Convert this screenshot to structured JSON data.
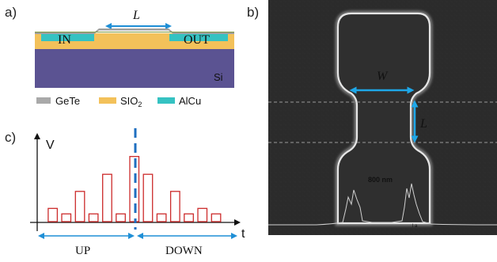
{
  "panel_a": {
    "letter": "a)",
    "label_length": "L",
    "label_in": "IN",
    "label_out": "OUT",
    "label_substrate": "Si",
    "legend": [
      {
        "text": "GeTe",
        "color": "#a9a9a9"
      },
      {
        "text": "SIO",
        "sub": "2",
        "color": "#f3c15a"
      },
      {
        "text": "AlCu",
        "color": "#35c2c2"
      }
    ],
    "colors": {
      "si": "#5b5392",
      "sio2": "#f3c15a",
      "alcu": "#35c2c2",
      "gete": "#9e9e9e",
      "arrow": "#1f8fd6"
    }
  },
  "panel_b": {
    "letter": "b)",
    "label_width": "W",
    "label_length": "L",
    "scale_text": "800 nm",
    "colors": {
      "background": "#2a2a2a",
      "outline": "#d8d8d8",
      "arrow": "#1ea7e8",
      "scale": "#e32020"
    }
  },
  "panel_c": {
    "letter": "c)",
    "ylabel": "V",
    "xlabel": "t",
    "label_up": "UP",
    "label_down": "DOWN",
    "colors": {
      "pulse": "#cc2b2b",
      "dashed": "#1f6fc0",
      "arrow": "#1f8fd6"
    },
    "pulses": [
      {
        "pos": 0.5,
        "height": 0.17
      },
      {
        "pos": 1.5,
        "height": 0.1
      },
      {
        "pos": 2.5,
        "height": 0.39
      },
      {
        "pos": 3.5,
        "height": 0.1
      },
      {
        "pos": 4.5,
        "height": 0.61
      },
      {
        "pos": 5.5,
        "height": 0.1
      },
      {
        "pos": 6.5,
        "height": 0.84
      },
      {
        "pos": 7.5,
        "height": 0.61
      },
      {
        "pos": 8.5,
        "height": 0.1
      },
      {
        "pos": 9.5,
        "height": 0.39
      },
      {
        "pos": 10.5,
        "height": 0.1
      },
      {
        "pos": 11.5,
        "height": 0.17
      },
      {
        "pos": 12.5,
        "height": 0.1
      }
    ]
  }
}
